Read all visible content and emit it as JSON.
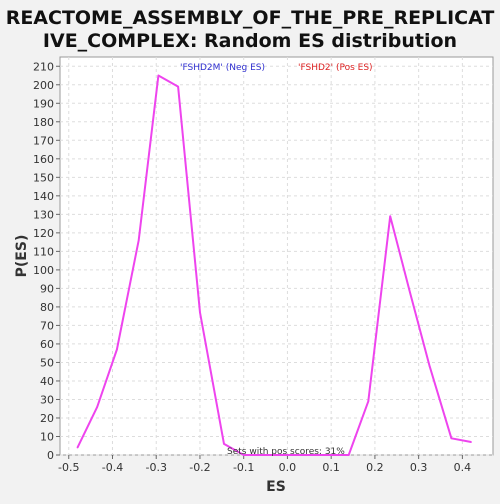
{
  "chart_data": {
    "type": "line",
    "title": "REACTOME_ASSEMBLY_OF_THE_PRE_REPLICATIVE_COMPLEX: Random ES distribution",
    "title_lines": [
      "REACTOME_ASSEMBLY_OF_THE_PRE_REPLICAT",
      "IVE_COMPLEX: Random ES distribution"
    ],
    "xlabel": "ES",
    "ylabel": "P(ES)",
    "xlim": [
      -0.52,
      0.47
    ],
    "ylim": [
      0,
      215
    ],
    "x_ticks": [
      -0.5,
      -0.4,
      -0.3,
      -0.2,
      -0.1,
      0.0,
      0.1,
      0.2,
      0.3,
      0.4
    ],
    "y_ticks": [
      0,
      10,
      20,
      30,
      40,
      50,
      60,
      70,
      80,
      90,
      100,
      110,
      120,
      130,
      140,
      150,
      160,
      170,
      180,
      190,
      200,
      210
    ],
    "grid": true,
    "series": [
      {
        "color": "#ee44ee",
        "x": [
          -0.48,
          -0.435,
          -0.39,
          -0.34,
          -0.295,
          -0.25,
          -0.2,
          -0.145,
          -0.1,
          -0.05,
          0.0,
          0.05,
          0.095,
          0.14,
          0.185,
          0.235,
          0.28,
          0.325,
          0.375,
          0.42
        ],
        "y": [
          4,
          26,
          57,
          116,
          205,
          199,
          77,
          6,
          0,
          0,
          0,
          0,
          0,
          0,
          29,
          129,
          88,
          48,
          9,
          7
        ]
      }
    ],
    "annotations": {
      "neg_label": "'FSHD2M' (Neg ES)",
      "neg_color": "#3030d0",
      "pos_label": "'FSHD2' (Pos ES)",
      "pos_color": "#dd2222",
      "sets_with_pos": "Sets with pos scores: 31%"
    }
  }
}
